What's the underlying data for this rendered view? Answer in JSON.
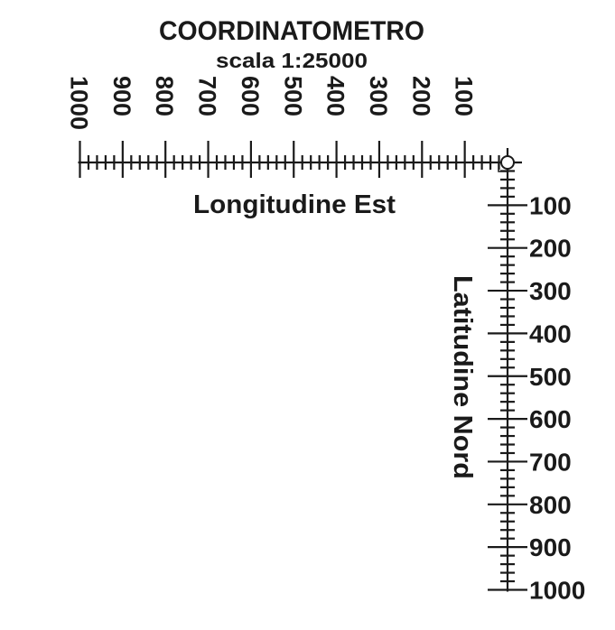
{
  "title": "COORDINATOMETRO",
  "subtitle": "scala 1:25000",
  "horizontal": {
    "label": "Longitudine Est",
    "ticks": [
      100,
      200,
      300,
      400,
      500,
      600,
      700,
      800,
      900,
      1000
    ]
  },
  "vertical": {
    "label": "Latitudine Nord",
    "ticks": [
      100,
      200,
      300,
      400,
      500,
      600,
      700,
      800,
      900,
      1000
    ]
  }
}
